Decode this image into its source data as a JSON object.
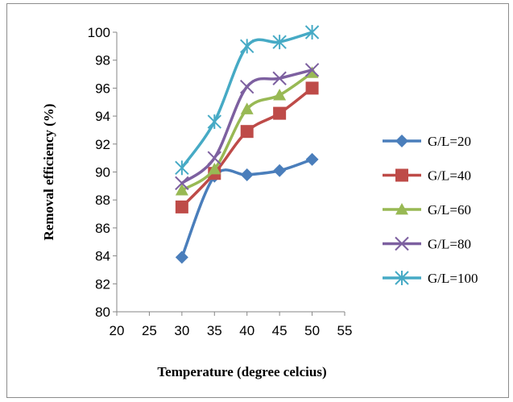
{
  "chart_data": {
    "type": "line",
    "title": "",
    "xlabel": "Temperature (degree celcius)",
    "ylabel": "Removal efficiency (%)",
    "xlim": [
      20,
      55
    ],
    "ylim": [
      80,
      100
    ],
    "xticks": [
      "20",
      "25",
      "30",
      "35",
      "40",
      "45",
      "50",
      "55"
    ],
    "yticks": [
      "80",
      "82",
      "84",
      "86",
      "88",
      "90",
      "92",
      "94",
      "96",
      "98",
      "100"
    ],
    "x": [
      30,
      35,
      40,
      45,
      50
    ],
    "grid": false,
    "legend_position": "right",
    "series": [
      {
        "name": "G/L=20",
        "values": [
          83.9,
          89.7,
          89.8,
          90.1,
          90.9
        ],
        "color": "#4a7ebb",
        "marker": "diamond"
      },
      {
        "name": "G/L=40",
        "values": [
          87.5,
          89.9,
          92.9,
          94.2,
          96.0
        ],
        "color": "#be4b48",
        "marker": "square"
      },
      {
        "name": "G/L=60",
        "values": [
          88.7,
          90.2,
          94.5,
          95.5,
          97.1
        ],
        "color": "#98b954",
        "marker": "triangle"
      },
      {
        "name": "G/L=80",
        "values": [
          89.2,
          91.0,
          96.1,
          96.7,
          97.3
        ],
        "color": "#7d60a0",
        "marker": "x"
      },
      {
        "name": "G/L=100",
        "values": [
          90.3,
          93.6,
          99.0,
          99.3,
          100.0
        ],
        "color": "#46aac5",
        "marker": "star"
      }
    ]
  }
}
